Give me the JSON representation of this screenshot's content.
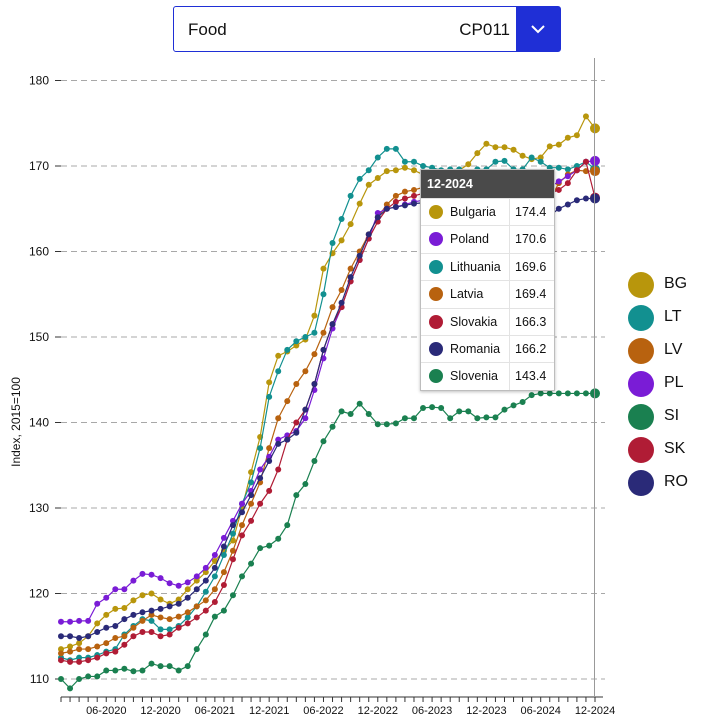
{
  "selector": {
    "category": "Food",
    "code": "CP011"
  },
  "chart_data": {
    "type": "line",
    "ylabel": "Index, 2015=100",
    "ylim": [
      108.5,
      182
    ],
    "yticks": [
      110,
      120,
      130,
      140,
      150,
      160,
      170,
      180
    ],
    "x_tick_labels": [
      "06-2020",
      "12-2020",
      "06-2021",
      "12-2021",
      "06-2022",
      "12-2022",
      "06-2023",
      "12-2023",
      "06-2024",
      "12-2024"
    ],
    "grid": "horizontal dashed",
    "x_start": "01-2020",
    "x_end": "12-2024",
    "series": [
      {
        "name": "BG",
        "color": "#b8960c",
        "values": [
          117,
          117.5,
          117.8,
          118.2,
          118.8,
          119,
          118.2,
          116.5,
          114.5,
          113.5,
          113.8,
          114.2,
          115,
          116.5,
          117.5,
          118.2,
          118.3,
          119.2,
          119.8,
          120,
          119.3,
          118.8,
          119.3,
          120.5,
          121.5,
          122.5,
          123.8,
          125,
          126.2,
          130,
          134.2,
          138.3,
          144.7,
          147.8,
          148.3,
          149,
          149.7,
          152.5,
          158,
          159.8,
          161.3,
          163.2,
          165.6,
          167.8,
          168.6,
          169.4,
          169.5,
          169.8,
          169.5,
          169,
          168.9,
          168.8,
          169,
          169.5,
          170.2,
          171.5,
          172.6,
          172.2,
          172.2,
          171.9,
          171.2,
          170.8,
          171,
          172.3,
          172.5,
          173.3,
          173.6,
          175.8,
          174.4
        ]
      },
      {
        "name": "LT",
        "color": "#129090",
        "values": [
          113.5,
          114,
          114.5,
          116,
          116.5,
          117.8,
          117.5,
          115.5,
          113.5,
          112.5,
          112.2,
          112.5,
          112.5,
          112.8,
          113.2,
          113.5,
          115.2,
          116.2,
          117,
          116.8,
          115.8,
          115.8,
          116.2,
          117.2,
          118.5,
          120.2,
          122,
          124.5,
          127,
          130.5,
          133,
          137,
          143,
          146,
          148.5,
          149.5,
          150,
          150.5,
          155,
          161,
          163.8,
          166.5,
          168.5,
          169.5,
          171,
          172,
          172,
          170.5,
          170.5,
          170,
          169.8,
          169.5,
          169.6,
          169.6,
          169,
          169.6,
          169.6,
          170.5,
          170.6,
          169.6,
          169.6,
          171,
          170.5,
          169.8,
          169.8,
          169.6,
          170,
          170.5,
          169.6
        ]
      },
      {
        "name": "LV",
        "color": "#b8620f",
        "values": [
          114,
          115.3,
          115.5,
          115.6,
          116,
          116.8,
          116,
          115,
          113.8,
          113,
          113.2,
          113.5,
          113.5,
          113.8,
          114.2,
          114.8,
          115,
          116,
          116.8,
          117.5,
          117.2,
          117,
          117.3,
          117.8,
          118.5,
          119.2,
          120.5,
          122.5,
          125,
          128,
          130.5,
          133,
          137,
          140.5,
          142.5,
          144.5,
          146,
          148,
          150.5,
          153.5,
          155.5,
          158,
          160,
          162,
          164,
          165.5,
          166.5,
          167,
          167.2,
          167.5,
          167.8,
          168,
          168.2,
          168.2,
          168.3,
          168.5,
          168.6,
          168.8,
          168.9,
          168.8,
          165.5,
          165,
          164.5,
          166,
          168,
          169,
          169.5,
          169.4,
          169.4
        ]
      },
      {
        "name": "PL",
        "color": "#7a1cd6",
        "values": [
          118.5,
          119.5,
          120.5,
          121,
          121.2,
          121.2,
          119.5,
          117.5,
          116.8,
          116.7,
          116.7,
          116.8,
          116.8,
          118.8,
          119.5,
          120.5,
          120.5,
          121.5,
          122.3,
          122.2,
          121.8,
          121.2,
          120.9,
          121.3,
          122,
          123,
          124.5,
          126.5,
          128.5,
          130.5,
          132,
          134.5,
          136,
          138,
          138.5,
          139,
          140.5,
          143.8,
          147.5,
          151,
          153.5,
          156.5,
          159,
          161.5,
          164.5,
          165,
          165.2,
          165.5,
          165.8,
          166,
          166.2,
          166.3,
          166.5,
          166.5,
          166.6,
          166.7,
          166.8,
          166.8,
          166.9,
          167,
          167.2,
          167.8,
          166.3,
          167.5,
          168.2,
          168.8,
          169.5,
          170.5,
          170.6
        ]
      },
      {
        "name": "SI",
        "color": "#1a8050",
        "values": [
          110,
          111,
          111,
          111.5,
          113.8,
          112,
          112,
          112.2,
          111,
          110,
          108.9,
          110,
          110.3,
          110.3,
          111,
          111,
          111.2,
          110.9,
          111,
          111.8,
          111.5,
          111.5,
          111,
          111.5,
          113.5,
          115.2,
          117.3,
          118,
          119.8,
          122,
          123.5,
          125.3,
          125.6,
          126.4,
          128,
          131.5,
          132.8,
          135.5,
          137.8,
          139.5,
          141.3,
          141,
          142.2,
          141,
          139.8,
          139.8,
          139.9,
          140.5,
          140.5,
          141.7,
          141.8,
          141.7,
          140.5,
          141.3,
          141.3,
          140.5,
          140.6,
          140.6,
          141.5,
          142,
          142.4,
          143.2,
          143.4,
          143.4,
          143.4,
          143.4,
          143.4,
          143.4,
          143.4
        ]
      },
      {
        "name": "SK",
        "color": "#b01c35",
        "values": [
          113.2,
          113.5,
          114,
          114.5,
          115.5,
          116.5,
          115.3,
          114.5,
          113,
          112.2,
          112,
          112,
          112.2,
          112.5,
          113,
          113.2,
          114,
          115,
          115.5,
          115.5,
          115,
          115.2,
          116,
          116.5,
          117.2,
          118,
          119,
          121,
          124,
          126.8,
          128.5,
          130.5,
          132,
          134.5,
          138,
          140,
          141.5,
          144.5,
          148.5,
          151.5,
          153.5,
          156.5,
          159,
          161.5,
          163.5,
          165,
          165.8,
          166.2,
          166.5,
          166.8,
          167,
          167.2,
          167.3,
          167.4,
          167.5,
          167.6,
          167.7,
          167.8,
          167.9,
          168,
          167.5,
          166.3,
          166.5,
          166.8,
          167.2,
          168,
          169.5,
          170.5,
          166.3
        ]
      },
      {
        "name": "RO",
        "color": "#2a2a78",
        "values": [
          113,
          113.3,
          113.8,
          115.8,
          117.8,
          118,
          117.5,
          116,
          114.8,
          115,
          115,
          114.8,
          115,
          115.5,
          116,
          116.2,
          117,
          117.5,
          117.8,
          118,
          118.2,
          118.5,
          118.8,
          119.5,
          120.5,
          121.5,
          123,
          125.5,
          128,
          129.5,
          131.5,
          133.5,
          135.5,
          137.5,
          138,
          138.8,
          141.5,
          144.5,
          148.5,
          151.5,
          154,
          157,
          159.5,
          162,
          164,
          165,
          165.2,
          165.4,
          165.6,
          165.7,
          165.8,
          165.9,
          166,
          166,
          166.1,
          166.1,
          166.2,
          166.2,
          166.2,
          166.2,
          166.2,
          162.5,
          163,
          164.2,
          165,
          165.5,
          166,
          166.2,
          166.2
        ]
      }
    ],
    "legend_position": "right",
    "tooltip": {
      "title": "12-2024",
      "rows": [
        {
          "name": "Bulgaria",
          "value": "174.4",
          "color": "#b8960c"
        },
        {
          "name": "Poland",
          "value": "170.6",
          "color": "#7a1cd6"
        },
        {
          "name": "Lithuania",
          "value": "169.6",
          "color": "#129090"
        },
        {
          "name": "Latvia",
          "value": "169.4",
          "color": "#b8620f"
        },
        {
          "name": "Slovakia",
          "value": "166.3",
          "color": "#b01c35"
        },
        {
          "name": "Romania",
          "value": "166.2",
          "color": "#2a2a78"
        },
        {
          "name": "Slovenia",
          "value": "143.4",
          "color": "#1a8050"
        }
      ]
    }
  }
}
